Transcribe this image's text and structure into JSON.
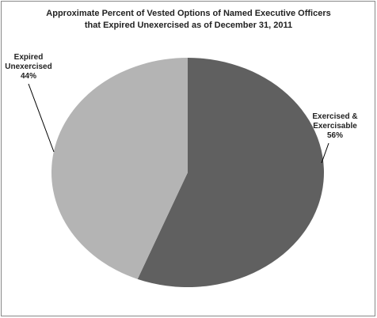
{
  "chart_data": {
    "type": "pie",
    "title": "Approximate Percent of Vested Options of Named Executive Officers\nthat Expired Unexercised as of December 31, 2011",
    "categories": [
      "Exercised &\nExercisable",
      "Expired\nUnexercised"
    ],
    "values": [
      56,
      44
    ],
    "value_labels": [
      "56%",
      "44%"
    ],
    "colors": [
      "#606060",
      "#b4b4b4"
    ]
  }
}
